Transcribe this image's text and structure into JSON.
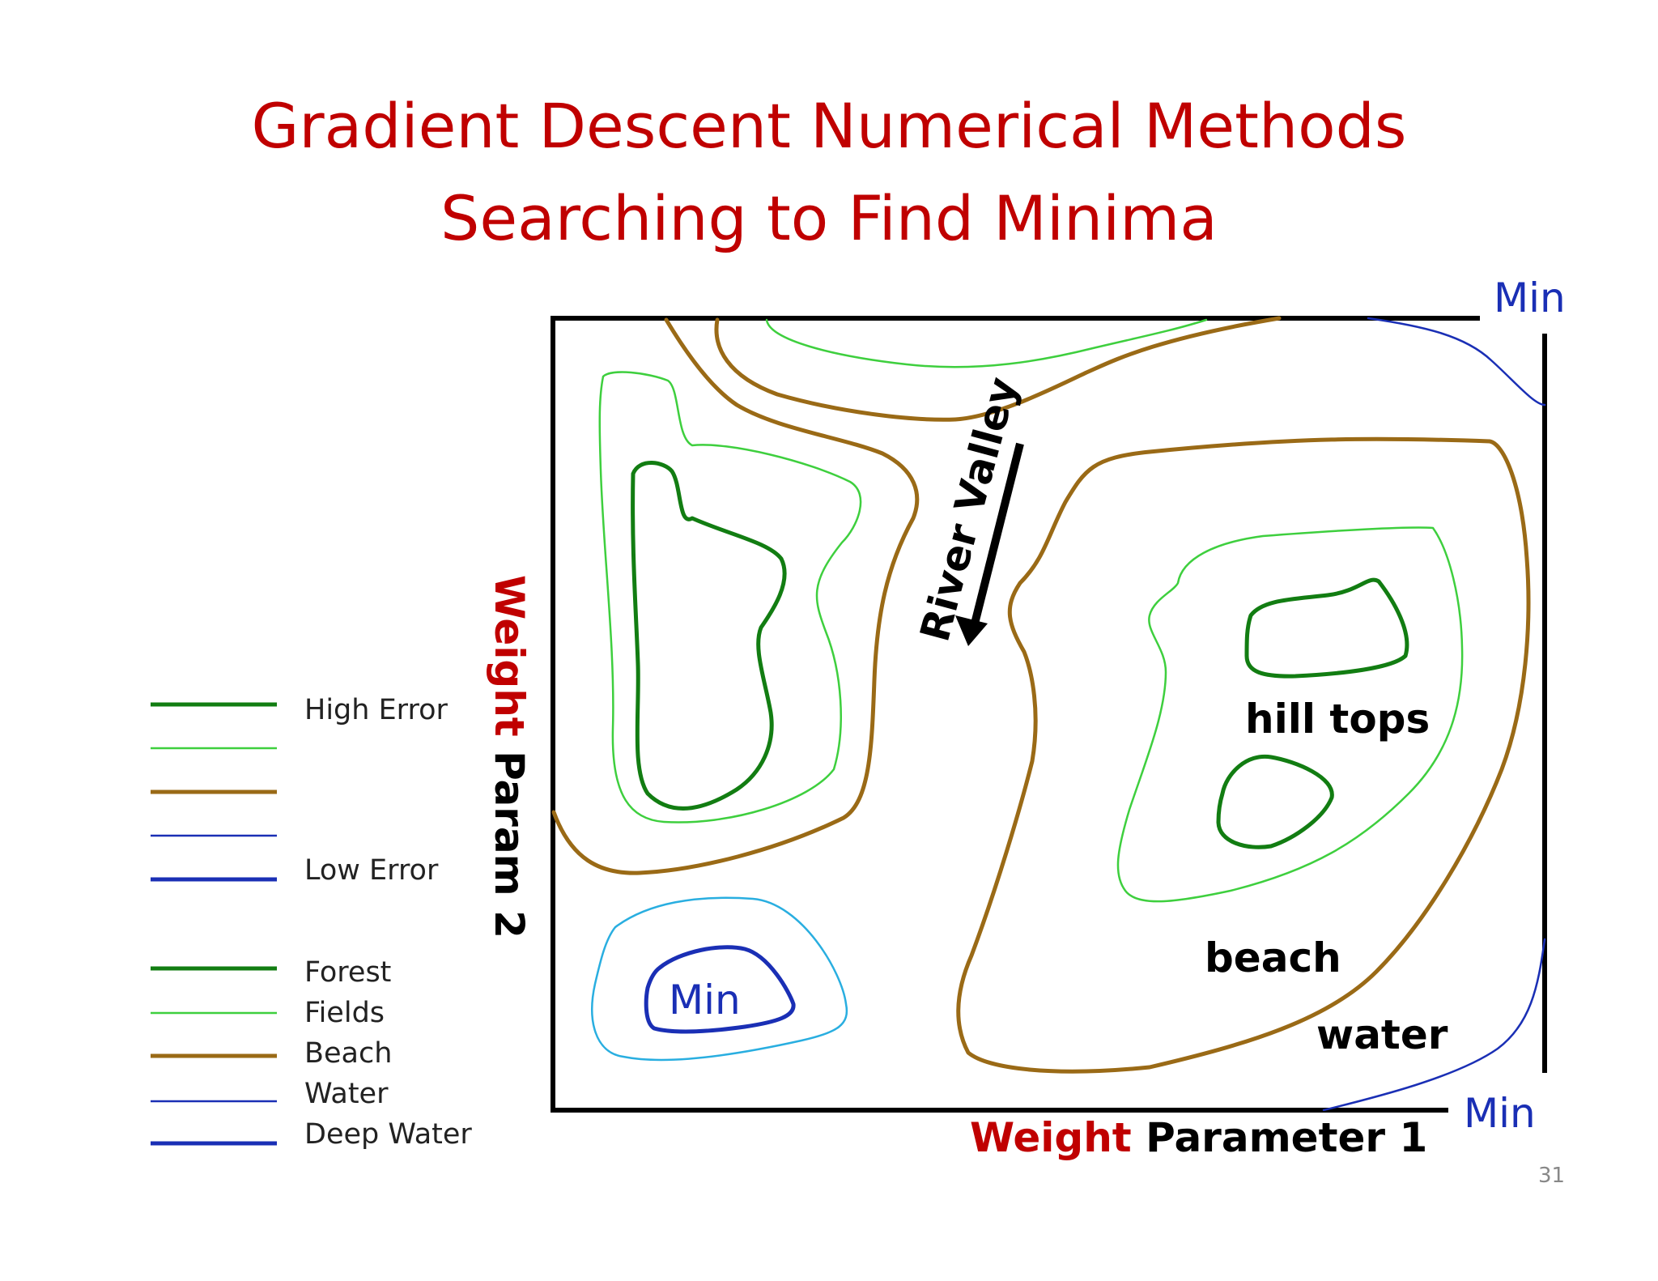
{
  "title": {
    "line1": "Gradient Descent Numerical Methods",
    "line2": "Searching to Find Minima"
  },
  "colors": {
    "title": "#c00000",
    "forest": "#127d12",
    "fields": "#3ecf3e",
    "beach": "#9a6a16",
    "water": "#1a2fb5",
    "deep_water": "#1a2fb5",
    "light_water": "#29aee0",
    "frame": "#000000"
  },
  "legend": {
    "scale": [
      {
        "label": "High Error",
        "style": "forest"
      },
      {
        "label": "",
        "style": "fields"
      },
      {
        "label": "",
        "style": "beach"
      },
      {
        "label": "",
        "style": "water"
      },
      {
        "label": "Low Error",
        "style": "deep_water"
      }
    ],
    "terrain": [
      {
        "label": "Forest",
        "style": "forest"
      },
      {
        "label": "Fields",
        "style": "fields"
      },
      {
        "label": "Beach",
        "style": "beach"
      },
      {
        "label": "Water",
        "style": "water"
      },
      {
        "label": "Deep Water",
        "style": "deep_water"
      }
    ]
  },
  "axes": {
    "y_label_red": "Weight",
    "y_label_black": "Param 2",
    "x_label_red": "Weight",
    "x_label_black": "Parameter 1"
  },
  "annotations": {
    "river_valley": "River Valley",
    "hill_tops": "hill tops",
    "beach": "beach",
    "water": "water",
    "min_top_right": "Min",
    "min_bottom_right": "Min",
    "min_bottom_left": "Min"
  },
  "slide_number": "31"
}
